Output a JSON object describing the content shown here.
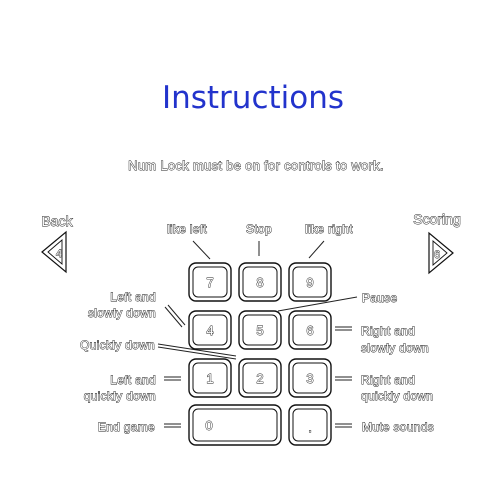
{
  "page": {
    "title": "Instructions",
    "note": "Num Lock must be on for controls to work."
  },
  "nav": {
    "back": {
      "label": "Back",
      "key": "4"
    },
    "scoring": {
      "label": "Scoring",
      "key": "6"
    }
  },
  "keys": {
    "k7": "7",
    "k8": "8",
    "k9": "9",
    "k4": "4",
    "k5": "5",
    "k6": "6",
    "k1": "1",
    "k2": "2",
    "k3": "3",
    "k0": "0",
    "kdot": "."
  },
  "labels": {
    "like_left": "like left",
    "stop": "Stop",
    "like_right": "like right",
    "pause": "Pause",
    "left_slow_1": "Left and",
    "left_slow_2": "slowly down",
    "right_slow_1": "Right and",
    "right_slow_2": "slowly down",
    "quickly_down": "Quickly down",
    "left_quick_1": "Left and",
    "left_quick_2": "quickly down",
    "right_quick_1": "Right and",
    "right_quick_2": "quickly down",
    "end_game": "End game",
    "mute": "Mute sounds"
  },
  "colors": {
    "title": "#2233cc",
    "outline": "#111111",
    "background": "#ffffff"
  }
}
